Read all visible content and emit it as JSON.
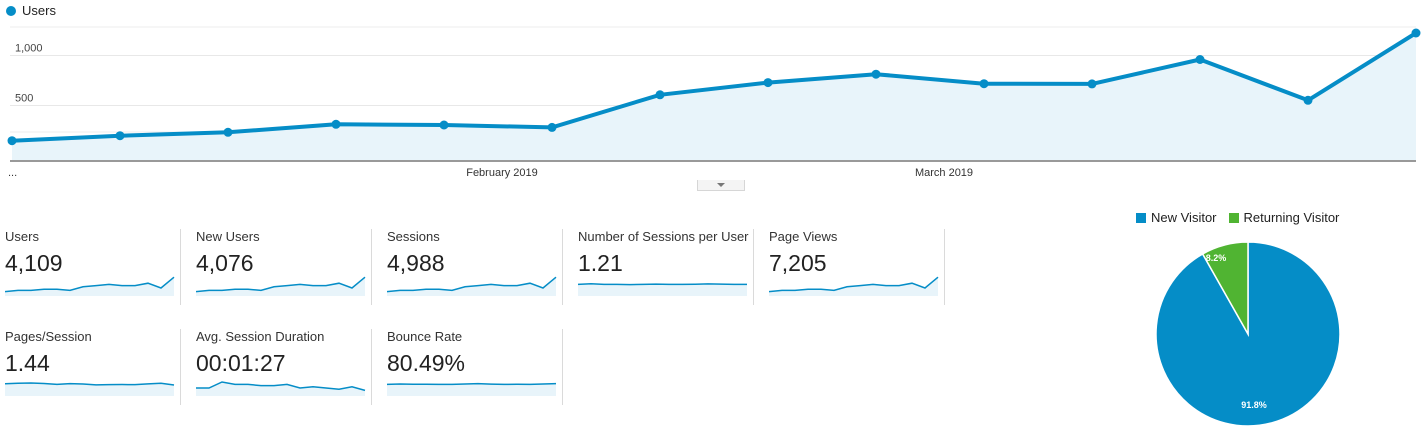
{
  "chart_data": [
    {
      "type": "area",
      "series": [
        {
          "name": "Users",
          "values": [
            148,
            198,
            232,
            312,
            305,
            281,
            607,
            729,
            813,
            718,
            716,
            960,
            552,
            1225
          ]
        }
      ],
      "ylim": [
        -45,
        1235
      ],
      "yticks": [
        "1,000",
        "500"
      ],
      "ytick_values": [
        1000,
        500
      ],
      "xlabels": [
        "...",
        "February 2019",
        "March 2019"
      ],
      "legend": "top-left",
      "grid": true,
      "color": "#058DC7"
    },
    {
      "type": "pie",
      "labels": [
        "New Visitor",
        "Returning Visitor"
      ],
      "values": [
        91.8,
        8.2
      ],
      "slice_labels": [
        "91.8%",
        "8.2%"
      ],
      "colors": [
        "#058DC7",
        "#50B432"
      ],
      "legend": "top"
    }
  ],
  "metrics": [
    {
      "label": "Users",
      "value": "4,109",
      "spark": [
        2,
        3,
        3,
        4,
        4,
        3,
        6,
        7,
        8,
        7,
        7,
        9,
        5,
        14
      ]
    },
    {
      "label": "New Users",
      "value": "4,076",
      "spark": [
        2,
        3,
        3,
        4,
        4,
        3,
        6,
        7,
        8,
        7,
        7,
        9,
        5,
        14
      ]
    },
    {
      "label": "Sessions",
      "value": "4,988",
      "spark": [
        2,
        3,
        3,
        4,
        4,
        3,
        6,
        7,
        8,
        7,
        7,
        9,
        5,
        14
      ]
    },
    {
      "label": "Number of Sessions per User",
      "value": "1.21",
      "spark": [
        8,
        8.5,
        8,
        8,
        7.8,
        8,
        8.2,
        8,
        8,
        8.1,
        8.4,
        8.2,
        8,
        8
      ]
    },
    {
      "label": "Page Views",
      "value": "7,205",
      "spark": [
        2,
        3,
        3,
        4,
        4,
        3,
        6,
        7,
        8,
        7,
        7,
        9,
        5,
        14
      ]
    },
    {
      "label": "Pages/Session",
      "value": "1.44",
      "spark": [
        8.5,
        9,
        9.2,
        8.8,
        8,
        8.6,
        8.3,
        7.6,
        7.8,
        7.9,
        7.8,
        8.4,
        9,
        7.5
      ]
    },
    {
      "label": "Avg. Session Duration",
      "value": "00:01:27",
      "spark": [
        5,
        5,
        10,
        8,
        8,
        7,
        7,
        8,
        5,
        6,
        5,
        4,
        6,
        3
      ]
    },
    {
      "label": "Bounce Rate",
      "value": "80.49%",
      "spark": [
        8,
        8.3,
        8.1,
        8.1,
        8,
        8,
        8.3,
        8.6,
        8.2,
        8,
        8.1,
        8,
        8.3,
        8.6
      ]
    }
  ]
}
